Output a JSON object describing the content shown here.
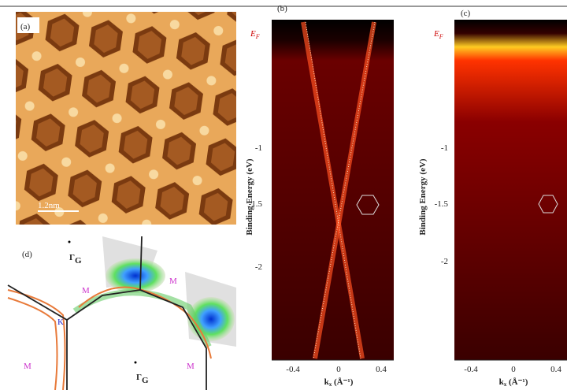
{
  "panels": {
    "a": {
      "label": "(a)",
      "scale_bar": "1.2nm"
    },
    "b": {
      "label": "(b)",
      "fermi_level": {
        "base": "E",
        "sub": "F"
      },
      "y_axis_label": "Binding Energy (eV)",
      "y_ticks": [
        "-1",
        "-1.5",
        "-2"
      ],
      "x_ticks": [
        "-0.4",
        "0",
        "0.4"
      ],
      "x_axis_label": {
        "base": "k",
        "sub": "x",
        "unit": " (Å⁻¹)"
      }
    },
    "c": {
      "label": "(c)",
      "fermi_level": {
        "base": "E",
        "sub": "F"
      },
      "y_axis_label": "Binding Energy (eV)",
      "y_ticks": [
        "-1",
        "-1.5",
        "-2"
      ],
      "x_ticks": [
        "-0.4",
        "0",
        "0.4"
      ],
      "x_axis_label": {
        "base": "k",
        "sub": "x",
        "unit": " (Å⁻¹)"
      }
    },
    "d": {
      "label": "(d)",
      "gamma": {
        "base": "Γ",
        "sub": "G"
      },
      "m_point": "M",
      "k_point": "K"
    }
  }
}
